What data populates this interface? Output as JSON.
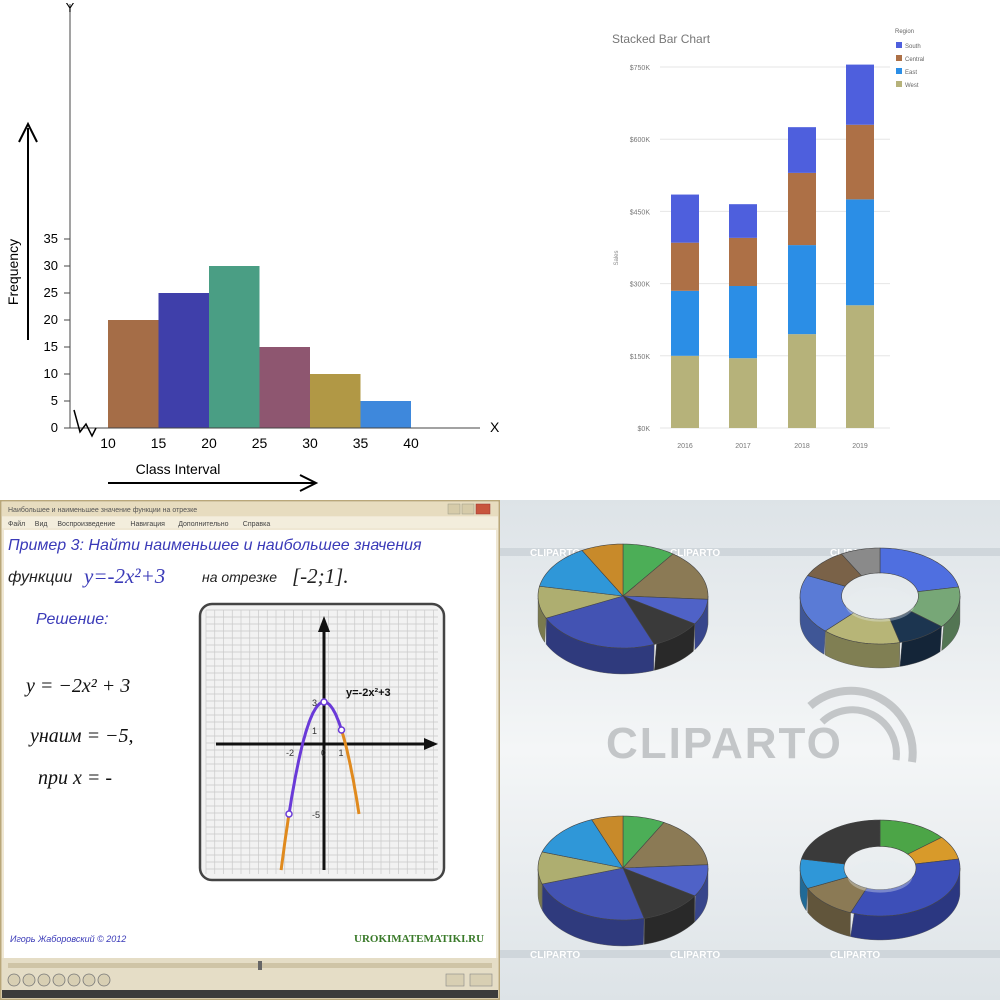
{
  "chart_data": [
    {
      "type": "bar",
      "title": "",
      "xlabel": "Class Interval",
      "ylabel": "Frequency",
      "x_axis_letter": "X",
      "y_axis_letter": "Y",
      "x_ticks": [
        "10",
        "15",
        "20",
        "25",
        "30",
        "35",
        "40"
      ],
      "y_ticks": [
        "0",
        "5",
        "10",
        "15",
        "20",
        "25",
        "30",
        "35"
      ],
      "ylim": [
        0,
        35
      ],
      "bins": [
        {
          "from": 10,
          "to": 15,
          "value": 20,
          "color": "#a56d47"
        },
        {
          "from": 15,
          "to": 20,
          "value": 25,
          "color": "#3f3faa"
        },
        {
          "from": 20,
          "to": 25,
          "value": 30,
          "color": "#4a9e84"
        },
        {
          "from": 25,
          "to": 30,
          "value": 15,
          "color": "#8e5670"
        },
        {
          "from": 30,
          "to": 35,
          "value": 10,
          "color": "#b19845"
        },
        {
          "from": 35,
          "to": 40,
          "value": 5,
          "color": "#3e88dc"
        }
      ]
    },
    {
      "type": "bar",
      "stacked": true,
      "title": "Stacked Bar Chart",
      "ylabel": "Sales",
      "legend_title": "Region",
      "legend_position": "top-right",
      "categories": [
        "2016",
        "2017",
        "2018",
        "2019"
      ],
      "y_ticks": [
        "$0K",
        "$150K",
        "$300K",
        "$450K",
        "$600K",
        "$750K"
      ],
      "ylim": [
        0,
        750
      ],
      "series": [
        {
          "name": "West",
          "color": "#b6b27a",
          "values": [
            150,
            145,
            195,
            255
          ]
        },
        {
          "name": "East",
          "color": "#2b8ee6",
          "values": [
            135,
            150,
            185,
            220
          ]
        },
        {
          "name": "Central",
          "color": "#ad7046",
          "values": [
            100,
            100,
            150,
            155
          ]
        },
        {
          "name": "South",
          "color": "#4e5fdd",
          "values": [
            100,
            70,
            95,
            125
          ]
        }
      ]
    },
    {
      "type": "line",
      "function_label": "y=-2x²+3",
      "x_tick_labels": [
        "-2",
        "0",
        "1"
      ],
      "y_tick_labels": [
        "3",
        "1",
        "-5"
      ],
      "xlim": [
        -2.6,
        4
      ],
      "ylim": [
        -7.5,
        4.5
      ],
      "series": [
        {
          "name": "y=-2x²+3",
          "points": [
            [
              -2,
              -5
            ],
            [
              -1.5,
              -1.5
            ],
            [
              -1,
              1
            ],
            [
              -0.5,
              2.5
            ],
            [
              0,
              3
            ],
            [
              0.5,
              2.5
            ],
            [
              1,
              1
            ]
          ]
        }
      ]
    }
  ],
  "math_lesson": {
    "window_title": "Наибольшее и наименьшее значение функции на отрезке",
    "menu": [
      "Файл",
      "Вид",
      "Воспроизведение",
      "Навигация",
      "Дополнительно",
      "Справка"
    ],
    "problem_line1": "Пример 3: Найти наименьшее и наибольшее значения",
    "problem_line2_prefix": "функции",
    "problem_function": "y=-2x²+3",
    "problem_line2_mid": "на отрезке",
    "problem_interval": "[-2;1].",
    "solution_label": "Решение:",
    "eq1": "y = −2x² + 3",
    "eq2": "yнаим = −5,",
    "eq3": "при x = -",
    "author": "Игорь Жаборовский © 2012",
    "site": "UROKIMATEMATIKI.RU"
  },
  "cliparto": {
    "watermark": "CLIPARTO",
    "small_marks": [
      "CLIPARTO",
      "CLIPARTO",
      "CLIPARTO",
      "CLIPARTO",
      "CLIPARTO",
      "CLIPARTO"
    ]
  }
}
